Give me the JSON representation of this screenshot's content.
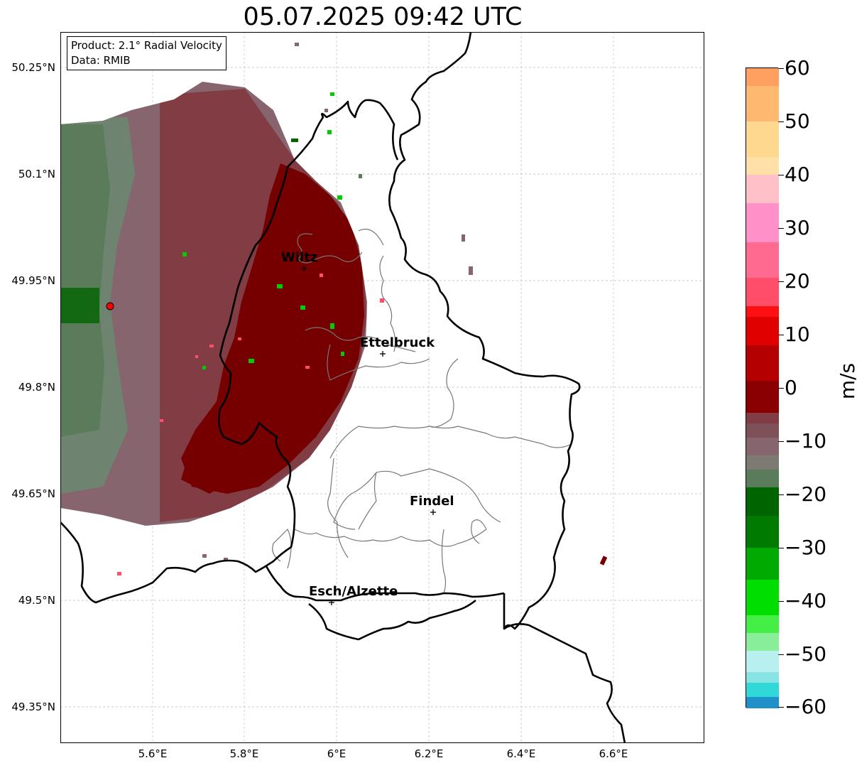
{
  "title": "05.07.2025 09:42 UTC",
  "info": {
    "product": "Product: 2.1° Radial Velocity",
    "data": "Data: RMIB"
  },
  "y_ticks": [
    "50.25°N",
    "50.1°N",
    "49.95°N",
    "49.8°N",
    "49.65°N",
    "49.5°N",
    "49.35°N"
  ],
  "x_ticks": [
    "5.6°E",
    "5.8°E",
    "6°E",
    "6.2°E",
    "6.4°E",
    "6.6°E"
  ],
  "colorbar": {
    "label": "m/s",
    "ticks": [
      "60",
      "50",
      "40",
      "30",
      "20",
      "10",
      "0",
      "−10",
      "−20",
      "−30",
      "−40",
      "−50",
      "−60"
    ],
    "range": [
      -60,
      60
    ]
  },
  "cities": [
    "Wiltz",
    "Ettelbruck",
    "Findel",
    "Esch/Alzette"
  ],
  "colors": {
    "dark_red": "#760000",
    "maroon": "#823c44",
    "mauve": "#86656e",
    "grey_green": "#6e8470",
    "green": "#5a7c5a",
    "bright_green": "#00cc00",
    "radar_site": "#ff0000"
  }
}
